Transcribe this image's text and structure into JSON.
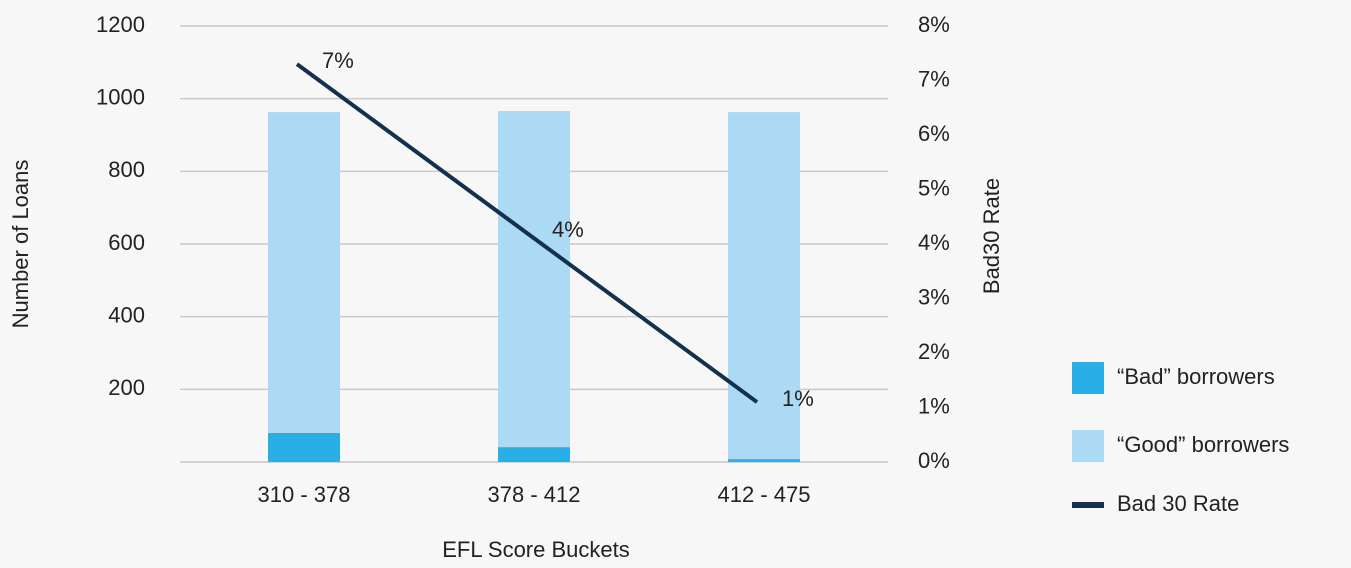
{
  "chart_data": {
    "type": "bar-line",
    "categories": [
      "310 - 378",
      "378 - 412",
      "412 - 475"
    ],
    "xlabel": "EFL Score Buckets",
    "ylabel": "Number of Loans",
    "y2label": "Bad30 Rate",
    "ylim": [
      0,
      1200
    ],
    "yticks": [
      200,
      400,
      600,
      800,
      1000,
      1200
    ],
    "y2lim": [
      0,
      8
    ],
    "y2ticks": [
      {
        "value": 0,
        "label": "0%"
      },
      {
        "value": 1,
        "label": "1%"
      },
      {
        "value": 2,
        "label": "2%"
      },
      {
        "value": 3,
        "label": "3%"
      },
      {
        "value": 4,
        "label": "4%"
      },
      {
        "value": 5,
        "label": "5%"
      },
      {
        "value": 6,
        "label": "6%"
      },
      {
        "value": 7,
        "label": "7%"
      },
      {
        "value": 8,
        "label": "8%"
      }
    ],
    "grid": true,
    "legend": "right",
    "series": [
      {
        "name": "“Bad” borrowers",
        "color": "#29aee6",
        "kind": "bar",
        "values": [
          80,
          41,
          8
        ]
      },
      {
        "name": "“Good” borrowers",
        "color": "#acd9f3",
        "kind": "bar",
        "values": [
          883,
          925,
          955
        ]
      },
      {
        "name": "Bad 30 Rate",
        "color": "#14304f",
        "kind": "line",
        "axis": "y2",
        "values": [
          7.3,
          4.2,
          1.1
        ],
        "value_labels": [
          "7%",
          "4%",
          "1%"
        ]
      }
    ]
  }
}
